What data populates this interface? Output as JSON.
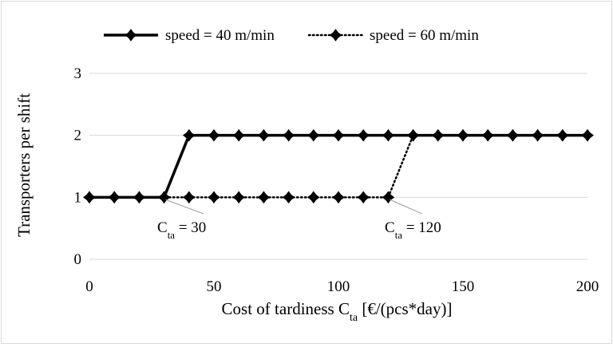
{
  "chart_data": {
    "type": "line",
    "xlabel": {
      "main": "Cost of tardiness C",
      "sub": "ta",
      "tail": " [€/(pcs*day)]"
    },
    "ylabel": "Transporters per shift",
    "xlim": [
      0,
      200
    ],
    "ylim": [
      0,
      3
    ],
    "x_ticks": [
      "0",
      "50",
      "100",
      "150",
      "200"
    ],
    "y_ticks": [
      "0",
      "1",
      "2",
      "3"
    ],
    "grid": "horizontal",
    "legend_position": "top",
    "x": [
      0,
      10,
      20,
      30,
      40,
      50,
      60,
      70,
      80,
      90,
      100,
      110,
      120,
      130,
      140,
      150,
      160,
      170,
      180,
      190,
      200
    ],
    "series": [
      {
        "name": "speed = 40 m/min",
        "style": "solid",
        "color": "#000000",
        "values": [
          1,
          1,
          1,
          1,
          2,
          2,
          2,
          2,
          2,
          2,
          2,
          2,
          2,
          2,
          2,
          2,
          2,
          2,
          2,
          2,
          2
        ]
      },
      {
        "name": "speed = 60 m/min",
        "style": "dotted",
        "color": "#000000",
        "values": [
          1,
          1,
          1,
          1,
          1,
          1,
          1,
          1,
          1,
          1,
          1,
          1,
          1,
          2,
          2,
          2,
          2,
          2,
          2,
          2,
          2
        ]
      }
    ],
    "annotations": [
      {
        "main": "C",
        "sub": "ta",
        "tail": " = 30",
        "x": 30,
        "y": 1
      },
      {
        "main": "C",
        "sub": "ta",
        "tail": " =  120",
        "x": 120,
        "y": 1
      }
    ],
    "gridline_color": "#d9d9d9",
    "leader_color": "#a6a6a6"
  }
}
